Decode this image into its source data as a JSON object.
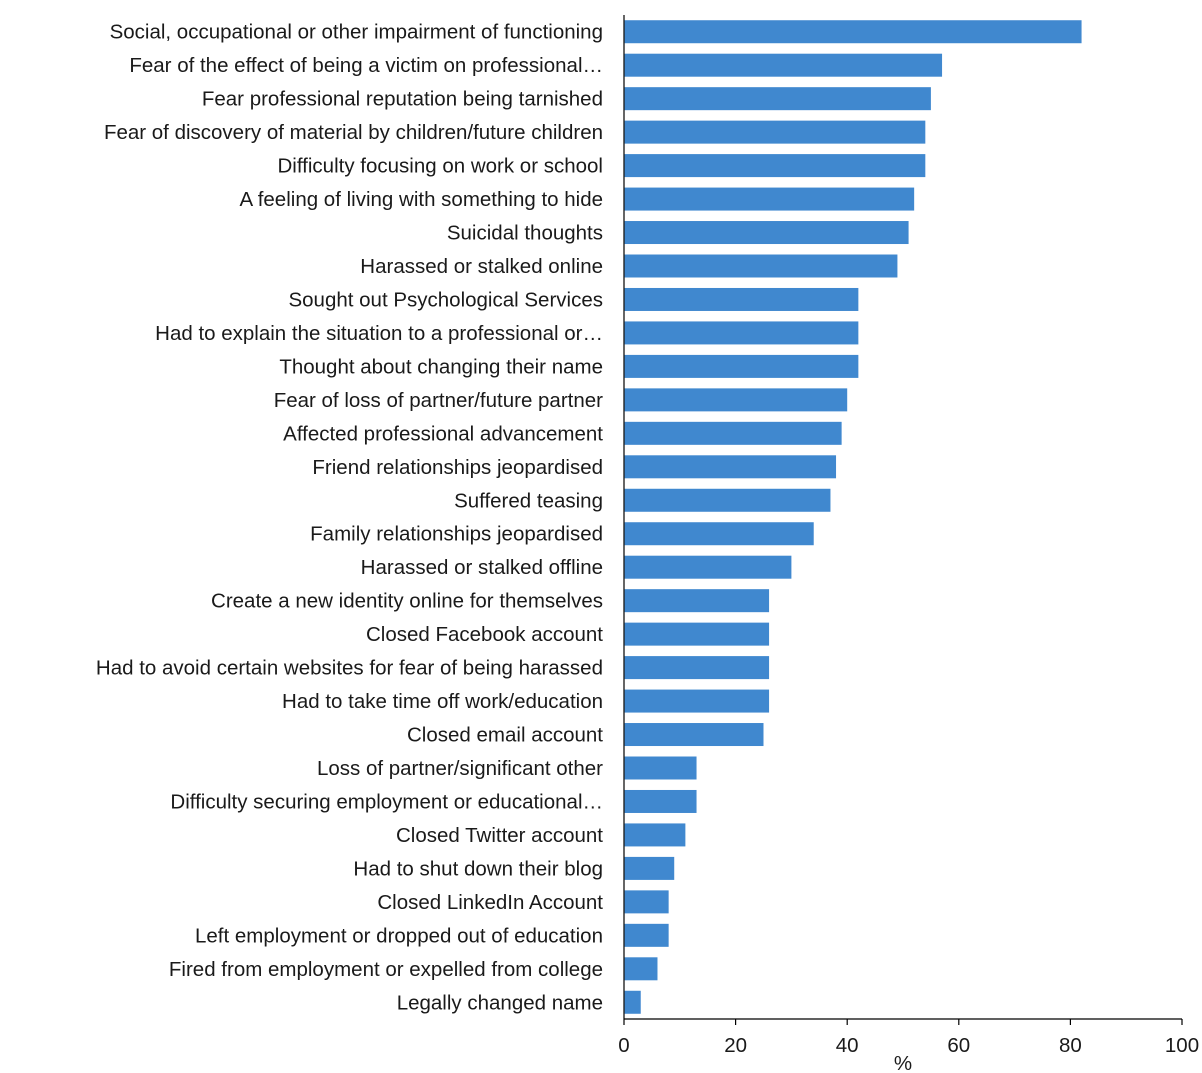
{
  "chart_data": {
    "type": "bar",
    "orientation": "horizontal",
    "title": "",
    "xlabel": "%",
    "ylabel": "",
    "xlim": [
      0,
      100
    ],
    "xticks": [
      0,
      20,
      40,
      60,
      80,
      100
    ],
    "grid": false,
    "legend": "none",
    "bar_color": "#4088cf",
    "text_color": "#1a1a1a",
    "axis_color": "#000000",
    "categories": [
      "Social, occupational or other impairment of functioning",
      "Fear of the effect of being a victim on professional…",
      "Fear professional reputation being tarnished",
      "Fear of discovery of material by children/future children",
      "Difficulty focusing on work or school",
      "A feeling of living with something to hide",
      "Suicidal thoughts",
      "Harassed or stalked online",
      "Sought out Psychological Services",
      "Had to explain the situation to a professional or…",
      "Thought about changing their name",
      "Fear of loss of partner/future partner",
      "Affected professional advancement",
      "Friend relationships jeopardised",
      "Suffered teasing",
      "Family relationships jeopardised",
      "Harassed or stalked offline",
      "Create a new identity online for themselves",
      "Closed Facebook account",
      "Had to avoid certain websites for fear of being harassed",
      "Had to take time off work/education",
      "Closed email account",
      "Loss of partner/significant other",
      "Difficulty securing employment or educational…",
      "Closed Twitter account",
      "Had to shut down their blog",
      "Closed LinkedIn Account",
      "Left employment or dropped out of education",
      "Fired from employment or expelled from college",
      "Legally changed name"
    ],
    "values": [
      82,
      57,
      55,
      54,
      54,
      52,
      51,
      49,
      42,
      42,
      42,
      40,
      39,
      38,
      37,
      34,
      30,
      26,
      26,
      26,
      26,
      25,
      13,
      13,
      11,
      9,
      8,
      8,
      6,
      3
    ]
  }
}
